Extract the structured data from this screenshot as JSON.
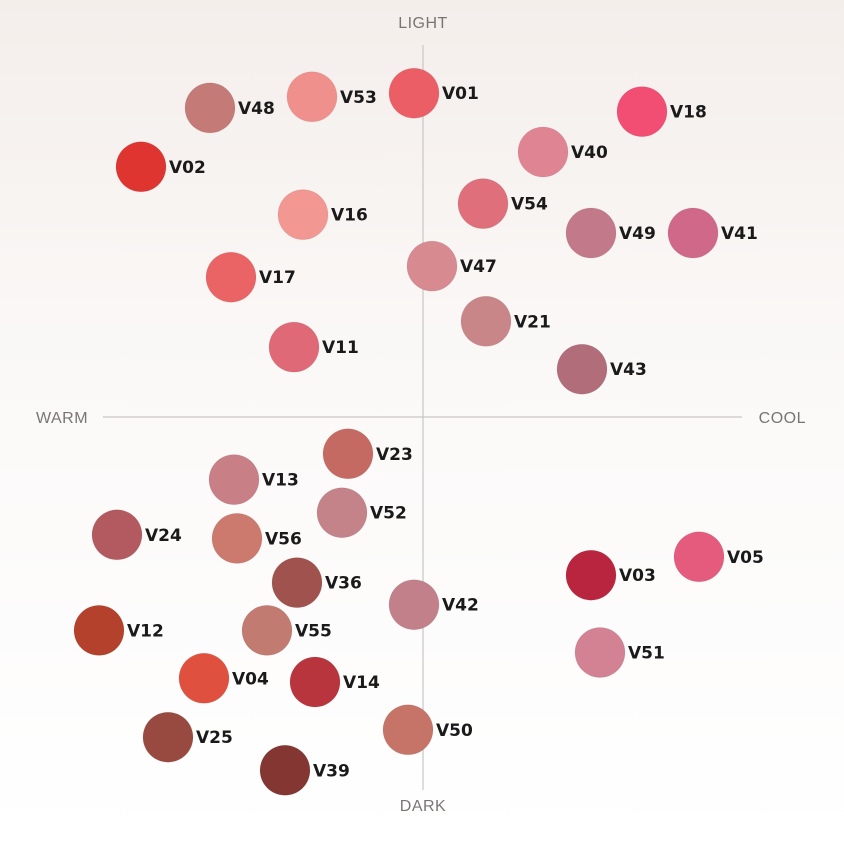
{
  "chart_data": {
    "type": "scatter",
    "title": "",
    "xlim": [
      -1,
      1
    ],
    "ylim": [
      -1,
      1
    ],
    "axes": {
      "top": "LIGHT",
      "bottom": "DARK",
      "left": "WARM",
      "right": "COOL"
    },
    "points": [
      {
        "label": "V01",
        "x": -0.03,
        "y": 0.88,
        "color": "#ec5e66"
      },
      {
        "label": "V53",
        "x": -0.37,
        "y": 0.87,
        "color": "#f0908d"
      },
      {
        "label": "V48",
        "x": -0.71,
        "y": 0.84,
        "color": "#c47a76"
      },
      {
        "label": "V18",
        "x": 0.73,
        "y": 0.83,
        "color": "#f24d73"
      },
      {
        "label": "V40",
        "x": 0.4,
        "y": 0.72,
        "color": "#df8493"
      },
      {
        "label": "V02",
        "x": -0.94,
        "y": 0.68,
        "color": "#df3530"
      },
      {
        "label": "V54",
        "x": 0.2,
        "y": 0.58,
        "color": "#df6f7a"
      },
      {
        "label": "V16",
        "x": -0.4,
        "y": 0.55,
        "color": "#f29791"
      },
      {
        "label": "V49",
        "x": 0.56,
        "y": 0.5,
        "color": "#c27989"
      },
      {
        "label": "V41",
        "x": 0.9,
        "y": 0.5,
        "color": "#cf6889"
      },
      {
        "label": "V47",
        "x": 0.03,
        "y": 0.41,
        "color": "#d78b91"
      },
      {
        "label": "V17",
        "x": -0.64,
        "y": 0.38,
        "color": "#ea6466"
      },
      {
        "label": "V21",
        "x": 0.21,
        "y": 0.26,
        "color": "#c98689"
      },
      {
        "label": "V11",
        "x": -0.43,
        "y": 0.19,
        "color": "#e06978"
      },
      {
        "label": "V43",
        "x": 0.53,
        "y": 0.13,
        "color": "#b16d7a"
      },
      {
        "label": "V23",
        "x": -0.25,
        "y": -0.1,
        "color": "#c46a63"
      },
      {
        "label": "V13",
        "x": -0.63,
        "y": -0.17,
        "color": "#c97f86"
      },
      {
        "label": "V52",
        "x": -0.27,
        "y": -0.26,
        "color": "#c48289"
      },
      {
        "label": "V24",
        "x": -1.02,
        "y": -0.32,
        "color": "#b25a60"
      },
      {
        "label": "V56",
        "x": -0.62,
        "y": -0.33,
        "color": "#cc7a6d"
      },
      {
        "label": "V05",
        "x": 0.92,
        "y": -0.38,
        "color": "#e55b7d"
      },
      {
        "label": "V03",
        "x": 0.56,
        "y": -0.43,
        "color": "#b9253f"
      },
      {
        "label": "V36",
        "x": -0.42,
        "y": -0.45,
        "color": "#a0534e"
      },
      {
        "label": "V42",
        "x": -0.03,
        "y": -0.51,
        "color": "#c1808a"
      },
      {
        "label": "V55",
        "x": -0.52,
        "y": -0.58,
        "color": "#c27b70"
      },
      {
        "label": "V12",
        "x": -1.08,
        "y": -0.58,
        "color": "#b3412b"
      },
      {
        "label": "V51",
        "x": 0.59,
        "y": -0.64,
        "color": "#d38294"
      },
      {
        "label": "V04",
        "x": -0.73,
        "y": -0.71,
        "color": "#e0503f"
      },
      {
        "label": "V14",
        "x": -0.36,
        "y": -0.72,
        "color": "#b8353e"
      },
      {
        "label": "V50",
        "x": -0.05,
        "y": -0.85,
        "color": "#c67468"
      },
      {
        "label": "V25",
        "x": -0.85,
        "y": -0.87,
        "color": "#984a40"
      },
      {
        "label": "V39",
        "x": -0.46,
        "y": -0.96,
        "color": "#833632"
      }
    ]
  }
}
